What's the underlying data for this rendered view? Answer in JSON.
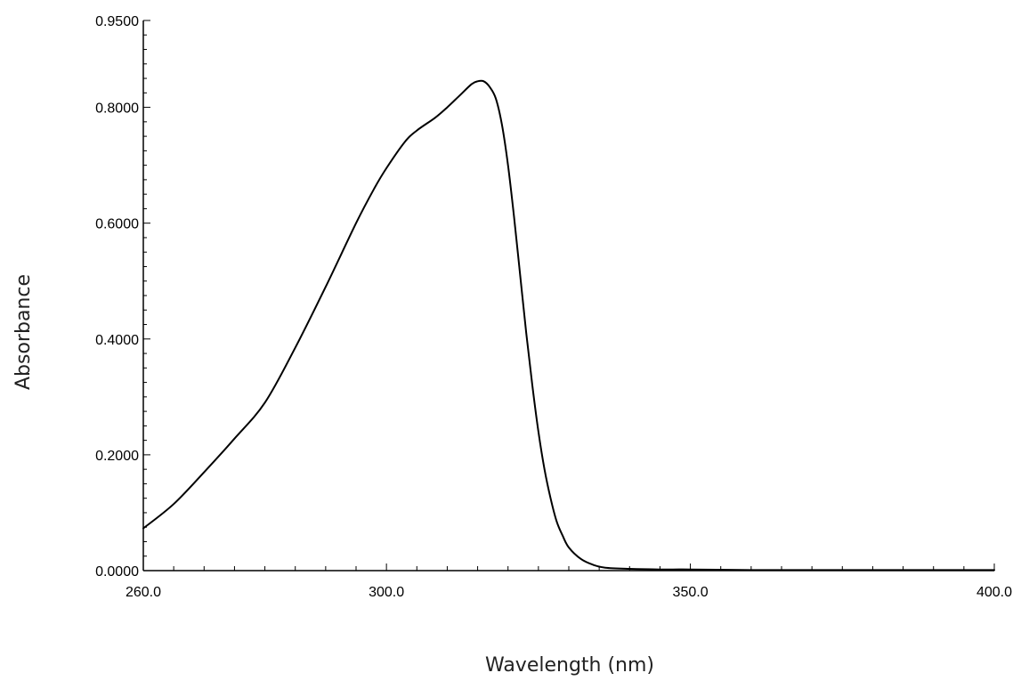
{
  "chart_data": {
    "type": "line",
    "xlabel": "Wavelength (nm)",
    "ylabel": "Absorbance",
    "xlim": [
      260,
      400
    ],
    "ylim": [
      0,
      0.95
    ],
    "x_ticks": [
      {
        "value": 260,
        "label": "260.0"
      },
      {
        "value": 300,
        "label": "300.0"
      },
      {
        "value": 350,
        "label": "350.0"
      },
      {
        "value": 400,
        "label": "400.0"
      }
    ],
    "y_ticks": [
      {
        "value": 0,
        "label": "0.0000"
      },
      {
        "value": 0.2,
        "label": "0.2000"
      },
      {
        "value": 0.4,
        "label": "0.4000"
      },
      {
        "value": 0.6,
        "label": "0.6000"
      },
      {
        "value": 0.8,
        "label": "0.8000"
      },
      {
        "value": 0.95,
        "label": "0.9500"
      }
    ],
    "grid": false,
    "series": [
      {
        "color": "#000000",
        "x": [
          260,
          265,
          270,
          275,
          280,
          285,
          290,
          295,
          298,
          300,
          303,
          305,
          308,
          310,
          312,
          314,
          315,
          316,
          317,
          318,
          319,
          320,
          321,
          322,
          323,
          324,
          325,
          326,
          327,
          328,
          329,
          330,
          332,
          334,
          336,
          340,
          345,
          350,
          360,
          370,
          380,
          390,
          400
        ],
        "y": [
          0.073,
          0.115,
          0.17,
          0.228,
          0.29,
          0.385,
          0.49,
          0.6,
          0.66,
          0.695,
          0.74,
          0.76,
          0.782,
          0.8,
          0.82,
          0.84,
          0.845,
          0.845,
          0.835,
          0.815,
          0.77,
          0.7,
          0.61,
          0.51,
          0.41,
          0.32,
          0.24,
          0.175,
          0.125,
          0.085,
          0.06,
          0.04,
          0.02,
          0.01,
          0.005,
          0.003,
          0.002,
          0.002,
          0.001,
          0.001,
          0.001,
          0.001,
          0.001
        ]
      }
    ]
  }
}
